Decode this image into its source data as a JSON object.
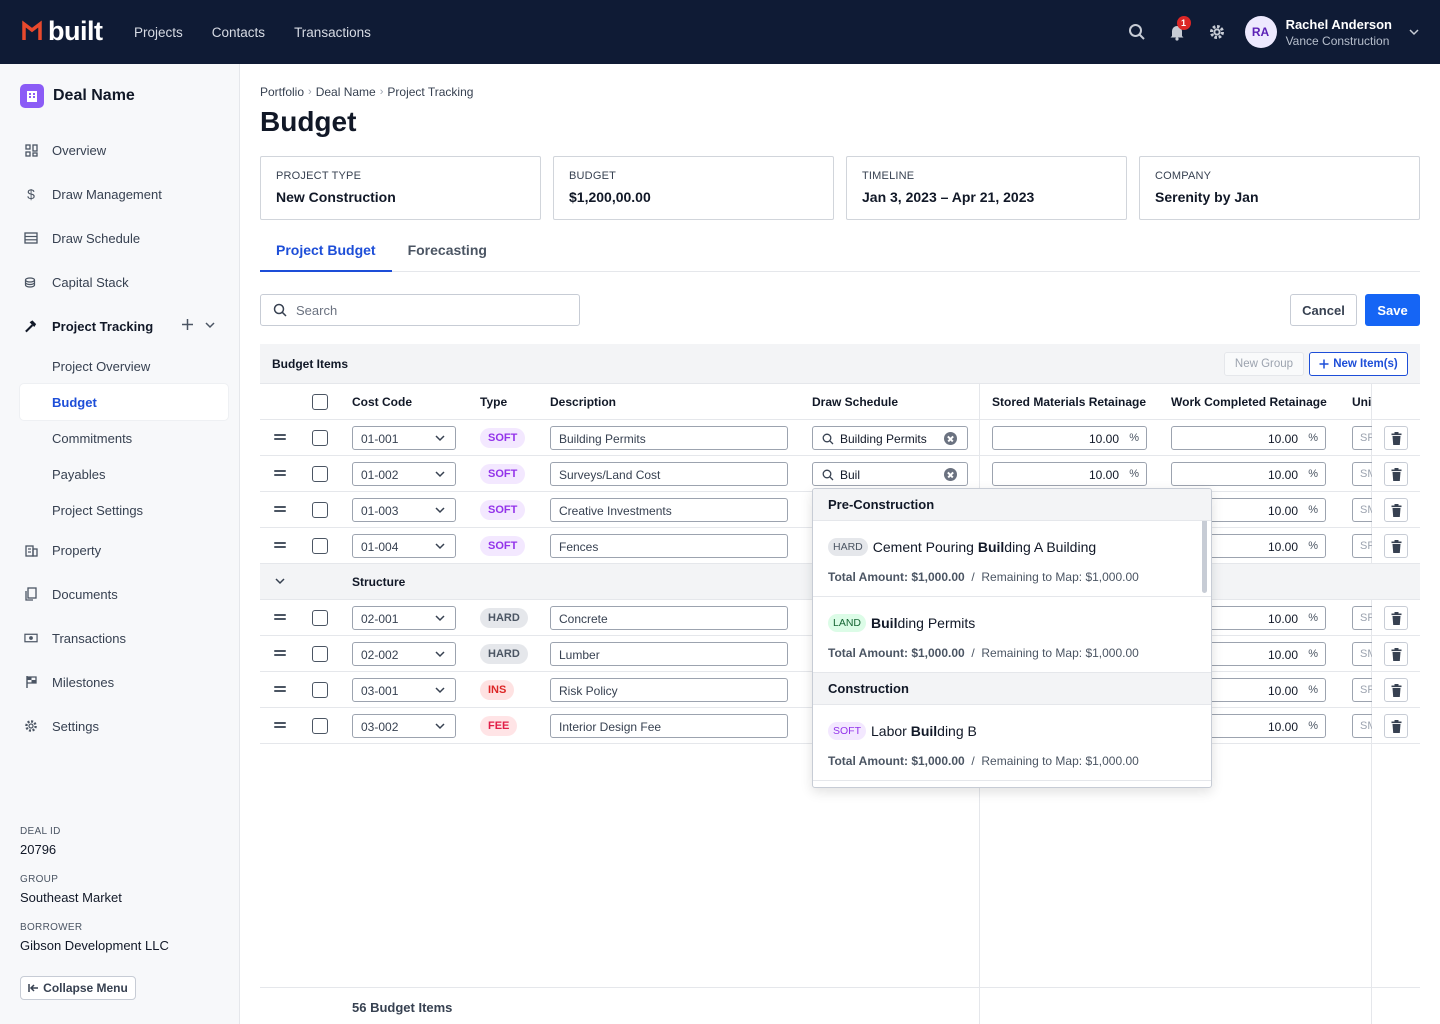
{
  "app": {
    "logo_text": "built",
    "brand_color": "#e8492d",
    "nav_bg": "#0f1b35",
    "accent": "#1565f5"
  },
  "topnav": [
    "Projects",
    "Contacts",
    "Transactions"
  ],
  "user": {
    "initials": "RA",
    "name": "Rachel Anderson",
    "org": "Vance Construction",
    "notifications": "1"
  },
  "sidebar": {
    "deal_name": "Deal Name",
    "items": [
      {
        "label": "Overview",
        "icon": "grid-icon"
      },
      {
        "label": "Draw Management",
        "icon": "dollar-icon"
      },
      {
        "label": "Draw Schedule",
        "icon": "table-icon"
      },
      {
        "label": "Capital Stack",
        "icon": "coins-icon"
      },
      {
        "label": "Project Tracking",
        "icon": "hammer-icon"
      }
    ],
    "subitems": [
      "Project Overview",
      "Budget",
      "Commitments",
      "Payables",
      "Project Settings"
    ],
    "items2": [
      {
        "label": "Property",
        "icon": "building-icon"
      },
      {
        "label": "Documents",
        "icon": "document-icon"
      },
      {
        "label": "Transactions",
        "icon": "cash-icon"
      },
      {
        "label": "Milestones",
        "icon": "flag-icon"
      },
      {
        "label": "Settings",
        "icon": "gear-icon"
      }
    ],
    "meta": [
      {
        "label": "DEAL ID",
        "value": "20796"
      },
      {
        "label": "GROUP",
        "value": "Southeast Market"
      },
      {
        "label": "BORROWER",
        "value": "Gibson Development LLC"
      }
    ],
    "collapse_label": "Collapse Menu"
  },
  "breadcrumb": [
    "Portfolio",
    "Deal Name",
    "Project Tracking"
  ],
  "page_title": "Budget",
  "cards": [
    {
      "label": "PROJECT TYPE",
      "value": "New Construction"
    },
    {
      "label": "BUDGET",
      "value": "$1,200,00.00"
    },
    {
      "label": "TIMELINE",
      "value": "Jan 3, 2023 – Apr 21, 2023"
    },
    {
      "label": "COMPANY",
      "value": "Serenity by Jan"
    }
  ],
  "tabs": [
    "Project Budget",
    "Forecasting"
  ],
  "search": {
    "placeholder": "Search"
  },
  "actions": {
    "cancel": "Cancel",
    "save": "Save"
  },
  "table": {
    "title": "Budget Items",
    "new_group": "New Group",
    "new_items": "New Item(s)",
    "columns": [
      "Cost Code",
      "Type",
      "Description",
      "Draw Schedule",
      "Stored Materials Retainage",
      "Work Completed Retainage",
      "Uni"
    ],
    "rows": [
      {
        "code": "01-001",
        "type": "SOFT",
        "desc": "Building Permits",
        "draw": "Building Permits",
        "stored": "10.00",
        "work": "10.00",
        "uni": "SF"
      },
      {
        "code": "01-002",
        "type": "SOFT",
        "desc": "Surveys/Land Cost",
        "draw": "Buil",
        "stored": "10.00",
        "work": "10.00",
        "uni": "SM"
      },
      {
        "code": "01-003",
        "type": "SOFT",
        "desc": "Creative Investments",
        "draw": "",
        "stored": "",
        "work": "10.00",
        "uni": "SM"
      },
      {
        "code": "01-004",
        "type": "SOFT",
        "desc": "Fences",
        "draw": "",
        "stored": "",
        "work": "10.00",
        "uni": "SF"
      }
    ],
    "group_label": "Structure",
    "rows2": [
      {
        "code": "02-001",
        "type": "HARD",
        "desc": "Concrete",
        "work": "10.00",
        "uni": "SF"
      },
      {
        "code": "02-002",
        "type": "HARD",
        "desc": "Lumber",
        "work": "10.00",
        "uni": "SM"
      },
      {
        "code": "03-001",
        "type": "INS",
        "desc": "Risk Policy",
        "work": "10.00",
        "uni": "SF"
      },
      {
        "code": "03-002",
        "type": "FEE",
        "desc": "Interior Design Fee",
        "work": "10.00",
        "uni": "SM"
      }
    ],
    "footer_count": "56 Budget Items"
  },
  "dropdown": {
    "sections": [
      {
        "title": "Pre-Construction",
        "items": [
          {
            "pill": "HARD",
            "pre": "Cement Pouring ",
            "match": "Buil",
            "post": "ding A Building",
            "total_label": "Total Amount: $1,000.00",
            "sep": "/",
            "remaining": "Remaining to Map: $1,000.00"
          },
          {
            "pill": "LAND",
            "pre": "",
            "match": "Buil",
            "post": "ding Permits",
            "total_label": "Total Amount: $1,000.00",
            "sep": "/",
            "remaining": "Remaining to Map: $1,000.00"
          }
        ]
      },
      {
        "title": "Construction",
        "items": [
          {
            "pill": "SOFT",
            "pre": "Labor ",
            "match": "Buil",
            "post": "ding B",
            "total_label": "Total Amount: $1,000.00",
            "sep": "/",
            "remaining": "Remaining to Map: $1,000.00"
          }
        ]
      }
    ]
  }
}
